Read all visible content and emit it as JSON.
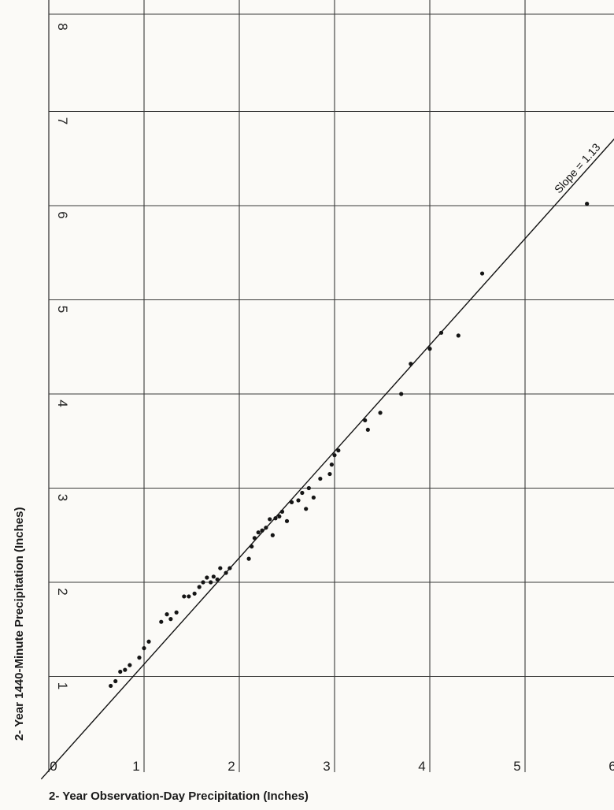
{
  "chart_data": {
    "type": "scatter",
    "xlabel": "2- Year Observation-Day Precipitation (Inches)",
    "ylabel": "2- Year 1440-Minute Precipitation (Inches)",
    "xlim": [
      0,
      6
    ],
    "ylim": [
      0,
      8
    ],
    "x_ticks": [
      "0",
      "1",
      "2",
      "3",
      "4",
      "5",
      "6"
    ],
    "y_ticks": [
      "1",
      "2",
      "3",
      "4",
      "5",
      "6",
      "7",
      "8"
    ],
    "grid": true,
    "fit_line": {
      "label": "Slope = 1.13",
      "slope": 1.13,
      "intercept": 0
    },
    "points": [
      [
        0.65,
        0.9
      ],
      [
        0.7,
        0.95
      ],
      [
        0.75,
        1.05
      ],
      [
        0.8,
        1.07
      ],
      [
        0.85,
        1.12
      ],
      [
        0.95,
        1.2
      ],
      [
        1.0,
        1.3
      ],
      [
        1.05,
        1.37
      ],
      [
        1.18,
        1.58
      ],
      [
        1.24,
        1.66
      ],
      [
        1.28,
        1.61
      ],
      [
        1.34,
        1.68
      ],
      [
        1.42,
        1.85
      ],
      [
        1.47,
        1.85
      ],
      [
        1.53,
        1.88
      ],
      [
        1.58,
        1.95
      ],
      [
        1.62,
        2.0
      ],
      [
        1.66,
        2.05
      ],
      [
        1.7,
        2.0
      ],
      [
        1.73,
        2.06
      ],
      [
        1.77,
        2.03
      ],
      [
        1.8,
        2.15
      ],
      [
        1.86,
        2.1
      ],
      [
        1.9,
        2.15
      ],
      [
        2.1,
        2.25
      ],
      [
        2.13,
        2.38
      ],
      [
        2.16,
        2.47
      ],
      [
        2.2,
        2.53
      ],
      [
        2.24,
        2.55
      ],
      [
        2.28,
        2.58
      ],
      [
        2.32,
        2.67
      ],
      [
        2.35,
        2.5
      ],
      [
        2.38,
        2.68
      ],
      [
        2.42,
        2.7
      ],
      [
        2.45,
        2.75
      ],
      [
        2.5,
        2.65
      ],
      [
        2.55,
        2.85
      ],
      [
        2.62,
        2.87
      ],
      [
        2.66,
        2.95
      ],
      [
        2.7,
        2.78
      ],
      [
        2.73,
        3.0
      ],
      [
        2.78,
        2.9
      ],
      [
        2.85,
        3.1
      ],
      [
        2.95,
        3.15
      ],
      [
        2.97,
        3.25
      ],
      [
        3.0,
        3.35
      ],
      [
        3.04,
        3.4
      ],
      [
        3.32,
        3.72
      ],
      [
        3.35,
        3.62
      ],
      [
        3.48,
        3.8
      ],
      [
        3.7,
        4.0
      ],
      [
        3.8,
        4.32
      ],
      [
        4.0,
        4.48
      ],
      [
        4.12,
        4.65
      ],
      [
        4.3,
        4.62
      ],
      [
        4.55,
        5.28
      ],
      [
        5.65,
        6.02
      ]
    ]
  }
}
